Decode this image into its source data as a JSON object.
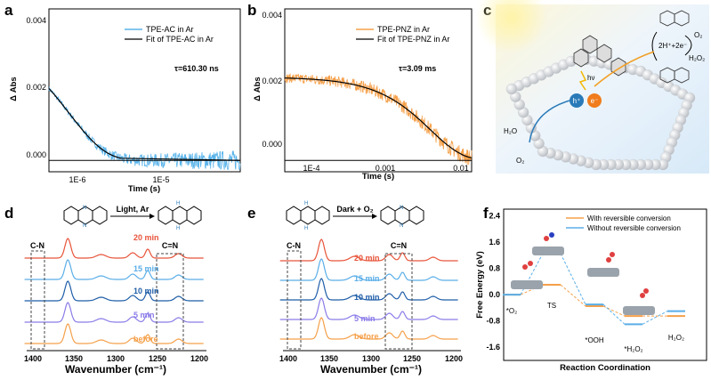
{
  "panel_a": {
    "letter": "a",
    "chart_data": {
      "type": "line",
      "xlabel": "Time (s)",
      "ylabel": "Δ Abs",
      "xscale": "log",
      "x_ticks": [
        "1E-6",
        "1E-5"
      ],
      "y_ticks": [
        "0.000",
        "0.002",
        "0.004"
      ],
      "xlim": [
        3.5e-07,
        6.5e-05
      ],
      "ylim": [
        -0.0003,
        0.004
      ],
      "series": [
        {
          "name": "TPE-AC in Ar",
          "color": "#5ab4ea",
          "tau_s": 6.103e-07,
          "amplitude": 0.0019
        },
        {
          "name": "Fit of TPE-AC in Ar",
          "color": "#000000",
          "tau_s": 6.103e-07,
          "amplitude": 0.0019
        }
      ],
      "annotation": "τ=610.30 ns"
    }
  },
  "panel_b": {
    "letter": "b",
    "chart_data": {
      "type": "line",
      "xlabel": "Time (s)",
      "ylabel": "Δ Abs",
      "xscale": "log",
      "x_ticks": [
        "1E-4",
        "0.001",
        "0.01"
      ],
      "y_ticks": [
        "0.000",
        "0.002",
        "0.004"
      ],
      "xlim": [
        3.5e-05,
        0.011
      ],
      "ylim": [
        -0.0003,
        0.004
      ],
      "series": [
        {
          "name": "TPE-PNZ in Ar",
          "color": "#f5a04a",
          "tau_s": 0.00309,
          "amplitude": 0.0022
        },
        {
          "name": "Fit of TPE-PNZ in Ar",
          "color": "#000000",
          "tau_s": 0.00309,
          "amplitude": 0.0022
        }
      ],
      "annotation": "τ=3.09 ms"
    }
  },
  "panel_c": {
    "letter": "c",
    "labels": {
      "hv": "hν",
      "hole": "h⁺",
      "electron": "e⁻",
      "protons": "2H⁺+2e⁻",
      "o2_top": "O₂",
      "h2o2": "H₂O₂",
      "h2o": "H₂O",
      "o2_bottom": "O₂"
    }
  },
  "panel_d": {
    "letter": "d",
    "reaction_label": "Light, Ar",
    "xlabel": "Wavenumber (cm⁻¹)",
    "x_ticks": [
      "1400",
      "1350",
      "1300",
      "1250",
      "1200"
    ],
    "peaks": [
      "C-N",
      "C=N"
    ],
    "traces": [
      {
        "label": "20 min",
        "color": "#e8543a"
      },
      {
        "label": "15 min",
        "color": "#5aaee8"
      },
      {
        "label": "10 min",
        "color": "#1f5ea8"
      },
      {
        "label": "5 min",
        "color": "#8a7ce8"
      },
      {
        "label": "before",
        "color": "#f5a04a"
      }
    ]
  },
  "panel_e": {
    "letter": "e",
    "reaction_label": "Dark + O₂",
    "xlabel": "Wavenumber (cm⁻¹)",
    "x_ticks": [
      "1400",
      "1350",
      "1300",
      "1250",
      "1200"
    ],
    "peaks": [
      "C-N",
      "C=N"
    ],
    "traces": [
      {
        "label": "20 min",
        "color": "#e8543a"
      },
      {
        "label": "15 min",
        "color": "#5aaee8"
      },
      {
        "label": "10 min",
        "color": "#1f5ea8"
      },
      {
        "label": "5 min",
        "color": "#8a7ce8"
      },
      {
        "label": "before",
        "color": "#f5a04a"
      }
    ]
  },
  "panel_f": {
    "letter": "f",
    "chart_data": {
      "type": "line",
      "ylabel": "Free Energy (eV)",
      "xlabel": "Reaction Coordination",
      "y_ticks": [
        "2.4",
        "1.6",
        "0.8",
        "0.0",
        "-0.8",
        "-1.6"
      ],
      "ylim": [
        -2.0,
        2.6
      ],
      "categories": [
        "*O₂",
        "TS",
        "*OOH",
        "*H₂O₂",
        "H₂O₂"
      ],
      "series": [
        {
          "name": "With reversible conversion",
          "color": "#f5a04a",
          "values": [
            0.0,
            0.3,
            -0.35,
            -0.65,
            -0.65
          ]
        },
        {
          "name": "Without reversible conversion",
          "color": "#5aaee8",
          "values": [
            0.0,
            1.25,
            -0.3,
            -0.9,
            -0.5
          ]
        }
      ]
    }
  }
}
